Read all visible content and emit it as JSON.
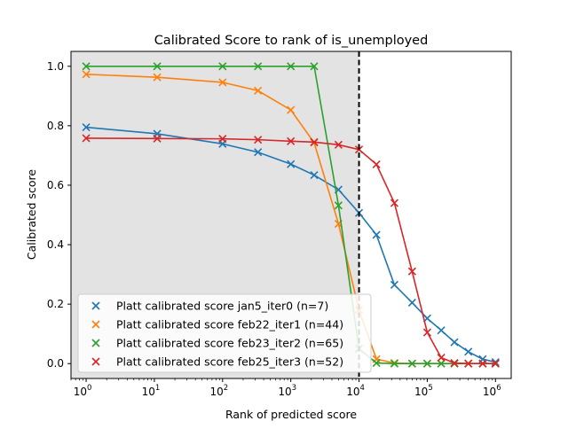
{
  "chart_data": {
    "type": "line",
    "title": "Calibrated Score to rank of is_unemployed",
    "xlabel": "Rank of predicted score",
    "ylabel": "Calibrated score",
    "xscale": "log",
    "xlim": [
      0.6,
      1700000
    ],
    "ylim": [
      -0.05,
      1.05
    ],
    "xticks": [
      {
        "value": 1,
        "base": "10",
        "exp": "0"
      },
      {
        "value": 10,
        "base": "10",
        "exp": "1"
      },
      {
        "value": 100,
        "base": "10",
        "exp": "2"
      },
      {
        "value": 1000,
        "base": "10",
        "exp": "3"
      },
      {
        "value": 10000,
        "base": "10",
        "exp": "4"
      },
      {
        "value": 100000,
        "base": "10",
        "exp": "5"
      },
      {
        "value": 1000000,
        "base": "10",
        "exp": "6"
      }
    ],
    "yticks": [
      {
        "value": 0.0,
        "label": "0.0"
      },
      {
        "value": 0.2,
        "label": "0.2"
      },
      {
        "value": 0.4,
        "label": "0.4"
      },
      {
        "value": 0.6,
        "label": "0.6"
      },
      {
        "value": 0.8,
        "label": "0.8"
      },
      {
        "value": 1.0,
        "label": "1.0"
      }
    ],
    "shaded_region": {
      "x_from": 0.6,
      "x_to": 10000,
      "color": "#e3e3e3"
    },
    "threshold_x": 10000,
    "grid": false,
    "legend_position": "lower-left",
    "series": [
      {
        "name": "Platt calibrated score jan5_iter0 (n=7)",
        "color": "#1f77b4",
        "points": [
          [
            1,
            0.795
          ],
          [
            11,
            0.773
          ],
          [
            100,
            0.739
          ],
          [
            330,
            0.711
          ],
          [
            1000,
            0.671
          ],
          [
            2200,
            0.634
          ],
          [
            5000,
            0.585
          ],
          [
            10000,
            0.507
          ],
          [
            18000,
            0.433
          ],
          [
            33000,
            0.265
          ],
          [
            60000,
            0.205
          ],
          [
            100000,
            0.152
          ],
          [
            160000,
            0.112
          ],
          [
            250000,
            0.072
          ],
          [
            400000,
            0.04
          ],
          [
            650000,
            0.015
          ],
          [
            1000000,
            0.005
          ]
        ]
      },
      {
        "name": "Platt calibrated score feb22_iter1 (n=44)",
        "color": "#ff7f0e",
        "points": [
          [
            1,
            0.973
          ],
          [
            11,
            0.963
          ],
          [
            100,
            0.946
          ],
          [
            330,
            0.918
          ],
          [
            1000,
            0.853
          ],
          [
            2200,
            0.743
          ],
          [
            5000,
            0.47
          ],
          [
            10000,
            0.18
          ],
          [
            18000,
            0.015
          ],
          [
            33000,
            0.002
          ],
          [
            60000,
            0.0
          ],
          [
            100000,
            0.0
          ],
          [
            160000,
            0.0
          ],
          [
            250000,
            0.0
          ],
          [
            400000,
            0.0
          ],
          [
            650000,
            0.0
          ],
          [
            1000000,
            0.0
          ]
        ]
      },
      {
        "name": "Platt calibrated score feb23_iter2 (n=65)",
        "color": "#2ca02c",
        "points": [
          [
            1,
            1.0
          ],
          [
            11,
            1.0
          ],
          [
            100,
            1.0
          ],
          [
            330,
            1.0
          ],
          [
            1000,
            1.0
          ],
          [
            2200,
            1.0
          ],
          [
            5000,
            0.532
          ],
          [
            10000,
            0.05
          ],
          [
            18000,
            0.002
          ],
          [
            33000,
            0.0
          ],
          [
            60000,
            0.0
          ],
          [
            100000,
            0.0
          ],
          [
            160000,
            0.0
          ],
          [
            250000,
            0.0
          ],
          [
            400000,
            0.0
          ],
          [
            650000,
            0.0
          ],
          [
            1000000,
            0.0
          ]
        ]
      },
      {
        "name": "Platt calibrated score feb25_iter3 (n=52)",
        "color": "#d62728",
        "points": [
          [
            1,
            0.758
          ],
          [
            11,
            0.757
          ],
          [
            100,
            0.756
          ],
          [
            330,
            0.753
          ],
          [
            1000,
            0.748
          ],
          [
            2200,
            0.745
          ],
          [
            5000,
            0.736
          ],
          [
            10000,
            0.72
          ],
          [
            18000,
            0.67
          ],
          [
            33000,
            0.54
          ],
          [
            60000,
            0.31
          ],
          [
            100000,
            0.105
          ],
          [
            160000,
            0.02
          ],
          [
            250000,
            0.002
          ],
          [
            400000,
            0.0
          ],
          [
            650000,
            0.0
          ],
          [
            1000000,
            0.0
          ]
        ]
      }
    ]
  }
}
